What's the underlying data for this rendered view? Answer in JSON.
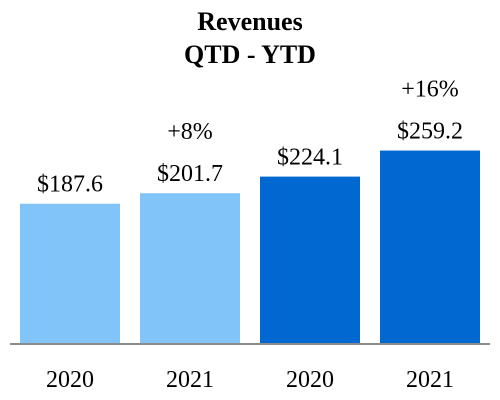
{
  "chart_data": {
    "type": "bar",
    "title": [
      "Revenues",
      "QTD - YTD"
    ],
    "xlabel": "",
    "ylabel": "",
    "ylim": [
      0,
      280
    ],
    "grid": false,
    "categories": [
      "2020",
      "2021",
      "2020",
      "2021"
    ],
    "values": [
      187.6,
      201.7,
      224.1,
      259.2
    ],
    "value_labels": [
      "$187.6",
      "$201.7",
      "$224.1",
      "$259.2"
    ],
    "change_labels": [
      "",
      "+8%",
      "",
      "+16%"
    ],
    "bar_colors": [
      "#80c4fa",
      "#80c4fa",
      "#0068d0",
      "#0068d0"
    ],
    "groups": [
      "QTD",
      "QTD",
      "YTD",
      "YTD"
    ]
  }
}
